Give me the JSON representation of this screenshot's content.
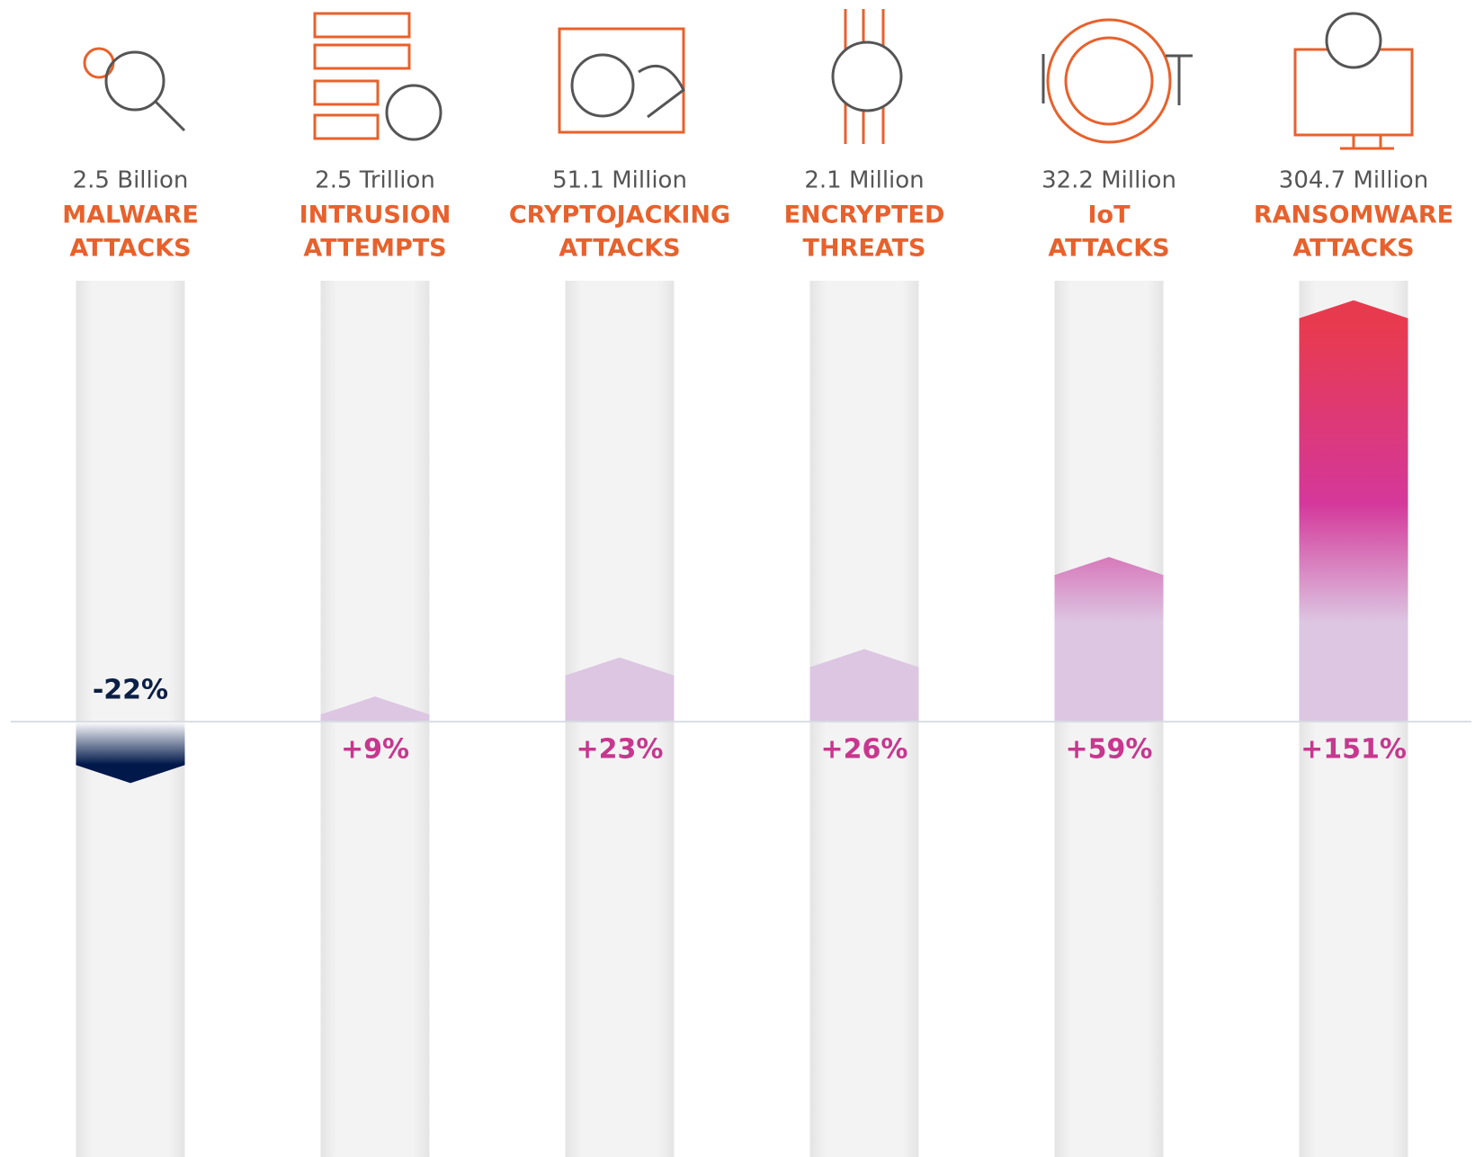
{
  "chart_data": {
    "type": "bar",
    "categories": [
      [
        "MALWARE",
        "ATTACKS"
      ],
      [
        "INTRUSION",
        "ATTEMPTS"
      ],
      [
        "CRYPTOJACKING",
        "ATTACKS"
      ],
      [
        "ENCRYPTED",
        "THREATS"
      ],
      [
        "IoT",
        "ATTACKS"
      ],
      [
        "RANSOMWARE",
        "ATTACKS"
      ]
    ],
    "counts": [
      "2.5 Billion",
      "2.5 Trillion",
      "51.1 Million",
      "2.1 Million",
      "32.2 Million",
      "304.7 Million"
    ],
    "values": [
      -22,
      9,
      23,
      26,
      59,
      151
    ],
    "value_labels": [
      "-22%",
      "+9%",
      "+23%",
      "+26%",
      "+59%",
      "+151%"
    ],
    "ylim": [
      -156,
      158
    ],
    "colors": {
      "positive": [
        "#dcc6e2",
        "#d4389a",
        "#e83a4f"
      ],
      "negative": [
        "#ffffff",
        "#00184a"
      ],
      "name": "#e8612c",
      "count": "#555555",
      "positive_label": "#c7378e",
      "negative_label": "#0c1f45"
    }
  }
}
